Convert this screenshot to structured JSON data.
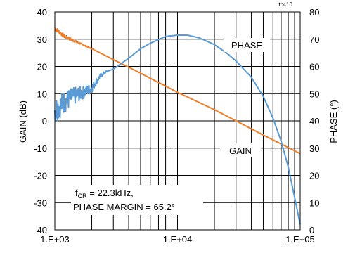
{
  "chart_data": {
    "type": "line",
    "figure_id": "toc10",
    "x_axis": {
      "scale": "log",
      "range": [
        1000,
        100000
      ],
      "ticks": [
        1000,
        10000,
        100000
      ],
      "tick_labels": [
        "1.E+03",
        "1.E+04",
        "1.E+05"
      ]
    },
    "y_left": {
      "label": "GAIN (dB)",
      "range": [
        -40,
        40
      ],
      "ticks": [
        40,
        30,
        20,
        10,
        0,
        -10,
        -20,
        -30,
        -40
      ],
      "tick_labels": [
        "40",
        "30",
        "20",
        "10",
        "0",
        "-10",
        "-20",
        "-30",
        "-40"
      ]
    },
    "y_right": {
      "label": "PHASE (°)",
      "range": [
        0,
        80
      ],
      "ticks": [
        80,
        70,
        60,
        50,
        40,
        30,
        20,
        10,
        0
      ],
      "tick_labels": [
        "80",
        "70",
        "60",
        "50",
        "40",
        "30",
        "20",
        "10",
        "0"
      ]
    },
    "grid": true,
    "series": [
      {
        "name": "GAIN",
        "axis": "left",
        "color": "#f07f2a",
        "x": [
          1000,
          1200,
          1500,
          2000,
          3000,
          5000,
          10000,
          20000,
          30000,
          50000,
          70000,
          100000
        ],
        "y": [
          34,
          31,
          29,
          26.5,
          22.5,
          17.5,
          10.5,
          4.1,
          0,
          -5.2,
          -8.5,
          -12
        ]
      },
      {
        "name": "PHASE",
        "axis": "right",
        "color": "#5b9bd5",
        "x": [
          1000,
          1100,
          1200,
          1300,
          1500,
          1700,
          2000,
          2300,
          2600,
          3000,
          4000,
          5000,
          6000,
          8000,
          10000,
          12000,
          15000,
          20000,
          25000,
          30000,
          40000,
          50000,
          60000,
          70000,
          80000,
          90000,
          100000
        ],
        "y": [
          44,
          45.5,
          47,
          48,
          49.5,
          50.5,
          52,
          56,
          58,
          59,
          63,
          66.5,
          68.5,
          71,
          71.5,
          71.5,
          70.5,
          68,
          65,
          62,
          56,
          49,
          41,
          32.5,
          23,
          12,
          2
        ]
      }
    ],
    "series_labels": [
      "PHASE",
      "GAIN"
    ],
    "annotations": {
      "fcr_prefix": "f",
      "fcr_subscript": "CR",
      "fcr_value": " = 22.3kHz,",
      "phase_margin": "PHASE MARGIN = 65.2°"
    }
  }
}
